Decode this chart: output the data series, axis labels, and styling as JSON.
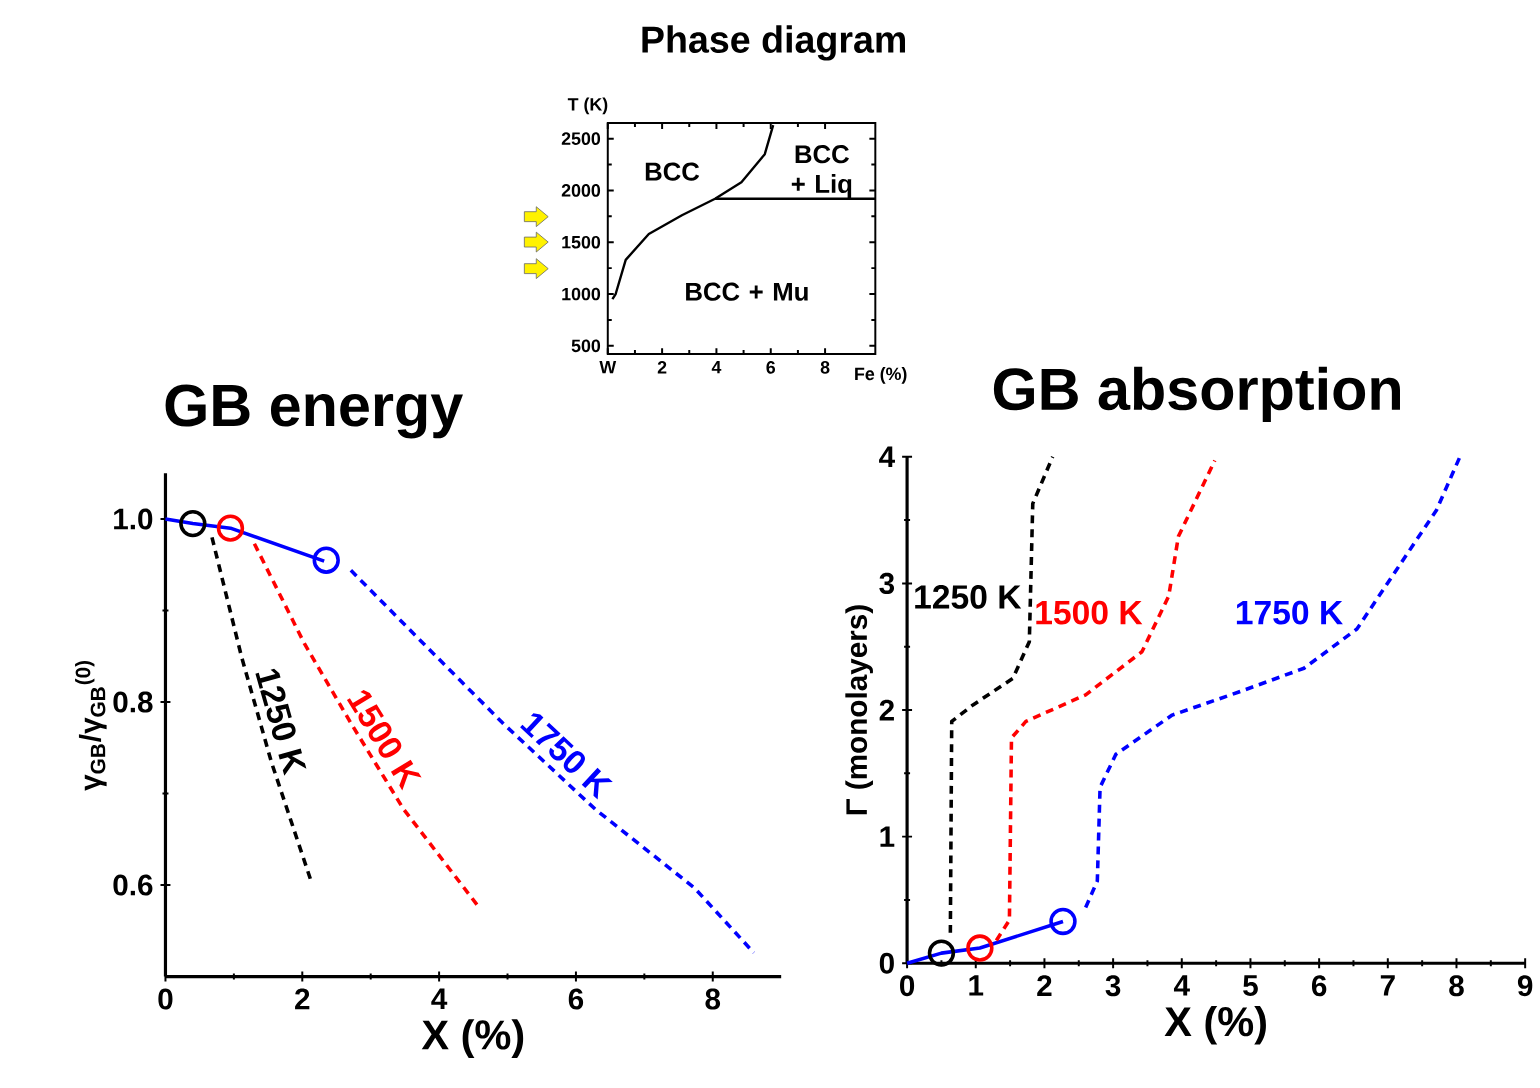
{
  "chart_data": [
    {
      "type": "line",
      "title": "Phase diagram",
      "xlabel": "Fe (%)",
      "ylabel": "T (K)",
      "xlim": [
        0,
        9.85
      ],
      "ylim": [
        420,
        2650
      ],
      "xticks": [
        {
          "value": 0,
          "label": "W"
        },
        2,
        4,
        6,
        8
      ],
      "yticks": [
        500,
        1000,
        1500,
        2000,
        2500
      ],
      "line_style": "solid",
      "series": [
        {
          "color": "#000000",
          "x": [
            0.17,
            0.29,
            0.66,
            1.51,
            2.73,
            3.95,
            4.92,
            5.78,
            6.09
          ],
          "values": [
            950,
            1000,
            1330,
            1580,
            1760,
            1920,
            2080,
            2350,
            2630
          ]
        },
        {
          "color": "#000000",
          "x": [
            3.95,
            9.85
          ],
          "values": [
            1920,
            1920
          ]
        }
      ],
      "annotations": [
        "BCC",
        "BCC + Liq",
        "BCC + Mu"
      ]
    },
    {
      "type": "line",
      "title": "GB energy",
      "xlabel": "X (%)",
      "ylabel": "γ$_{GB}$/γ$_{GB}$$^{(0)}$",
      "xlim": [
        0,
        9
      ],
      "ylim": [
        0.5,
        1.05
      ],
      "xticks": [
        0,
        2,
        4,
        6,
        8
      ],
      "yticks": [
        0.6,
        0.8,
        {
          "value": 1,
          "label": "1.0"
        }
      ],
      "series": [
        {
          "type": "line",
          "line_style": "solid",
          "color": "#0000ff",
          "x": [
            0,
            0.4,
            0.95,
            2.32
          ],
          "values": [
            1.0,
            0.995,
            0.99,
            0.954
          ]
        },
        {
          "type": "line",
          "line_style": "dashed",
          "name": "1250 K",
          "color": "#000000",
          "x": [
            0.68,
            1.11,
            1.55,
            2.13
          ],
          "values": [
            0.98,
            0.85,
            0.734,
            0.604
          ]
        },
        {
          "type": "line",
          "line_style": "dashed",
          "name": "1500 K",
          "color": "#ff0000",
          "x": [
            1.3,
            2.03,
            2.71,
            3.48,
            4.59
          ],
          "values": [
            0.973,
            0.864,
            0.777,
            0.683,
            0.575
          ]
        },
        {
          "type": "line",
          "line_style": "dashed",
          "name": "1750 K",
          "color": "#0000ff",
          "x": [
            2.71,
            3.77,
            4.93,
            6.28,
            7.73,
            8.6
          ],
          "values": [
            0.944,
            0.864,
            0.777,
            0.683,
            0.597,
            0.526
          ]
        },
        {
          "type": "scatter",
          "marker": "circle",
          "colors": [
            "#000000",
            "#ff0000",
            "#0000ff"
          ],
          "x": [
            0.4,
            0.95,
            2.35
          ],
          "values": [
            0.995,
            0.99,
            0.955
          ]
        }
      ]
    },
    {
      "type": "line",
      "title": "GB absorption",
      "xlabel": "X (%)",
      "ylabel": "Γ (monolayers)",
      "xlim": [
        0,
        9
      ],
      "ylim": [
        0,
        4
      ],
      "xticks": [
        0,
        1,
        2,
        3,
        4,
        5,
        6,
        7,
        8,
        9
      ],
      "yticks": [
        0,
        1,
        2,
        3,
        4
      ],
      "series": [
        {
          "type": "line",
          "line_style": "solid",
          "color": "#0000ff",
          "x": [
            0,
            0.5,
            1.06,
            2.27
          ],
          "values": [
            0,
            0.08,
            0.12,
            0.33
          ]
        },
        {
          "type": "line",
          "line_style": "dashed",
          "name": "1250 K",
          "color": "#000000",
          "x": [
            0.63,
            0.65,
            0.96,
            1.54,
            1.78,
            1.83,
            2.12
          ],
          "values": [
            0.24,
            1.91,
            2.04,
            2.25,
            2.54,
            3.63,
            4.0
          ]
        },
        {
          "type": "line",
          "line_style": "dashed",
          "name": "1500 K",
          "color": "#ff0000",
          "x": [
            1.3,
            1.49,
            1.52,
            1.73,
            2.6,
            3.42,
            3.81,
            3.95,
            4.48
          ],
          "values": [
            0.18,
            0.34,
            1.78,
            1.91,
            2.12,
            2.46,
            2.9,
            3.37,
            3.97
          ]
        },
        {
          "type": "line",
          "line_style": "dashed",
          "name": "1750 K",
          "color": "#0000ff",
          "x": [
            2.6,
            2.77,
            2.81,
            3.04,
            3.86,
            4.82,
            5.78,
            6.55,
            7.13,
            7.71,
            8.05
          ],
          "values": [
            0.44,
            0.65,
            1.39,
            1.65,
            1.96,
            2.14,
            2.33,
            2.64,
            3.11,
            3.58,
            4.0
          ]
        },
        {
          "type": "scatter",
          "marker": "circle",
          "colors": [
            "#000000",
            "#ff0000",
            "#0000ff"
          ],
          "x": [
            0.5,
            1.06,
            2.27
          ],
          "values": [
            0.08,
            0.12,
            0.33
          ]
        }
      ]
    }
  ]
}
